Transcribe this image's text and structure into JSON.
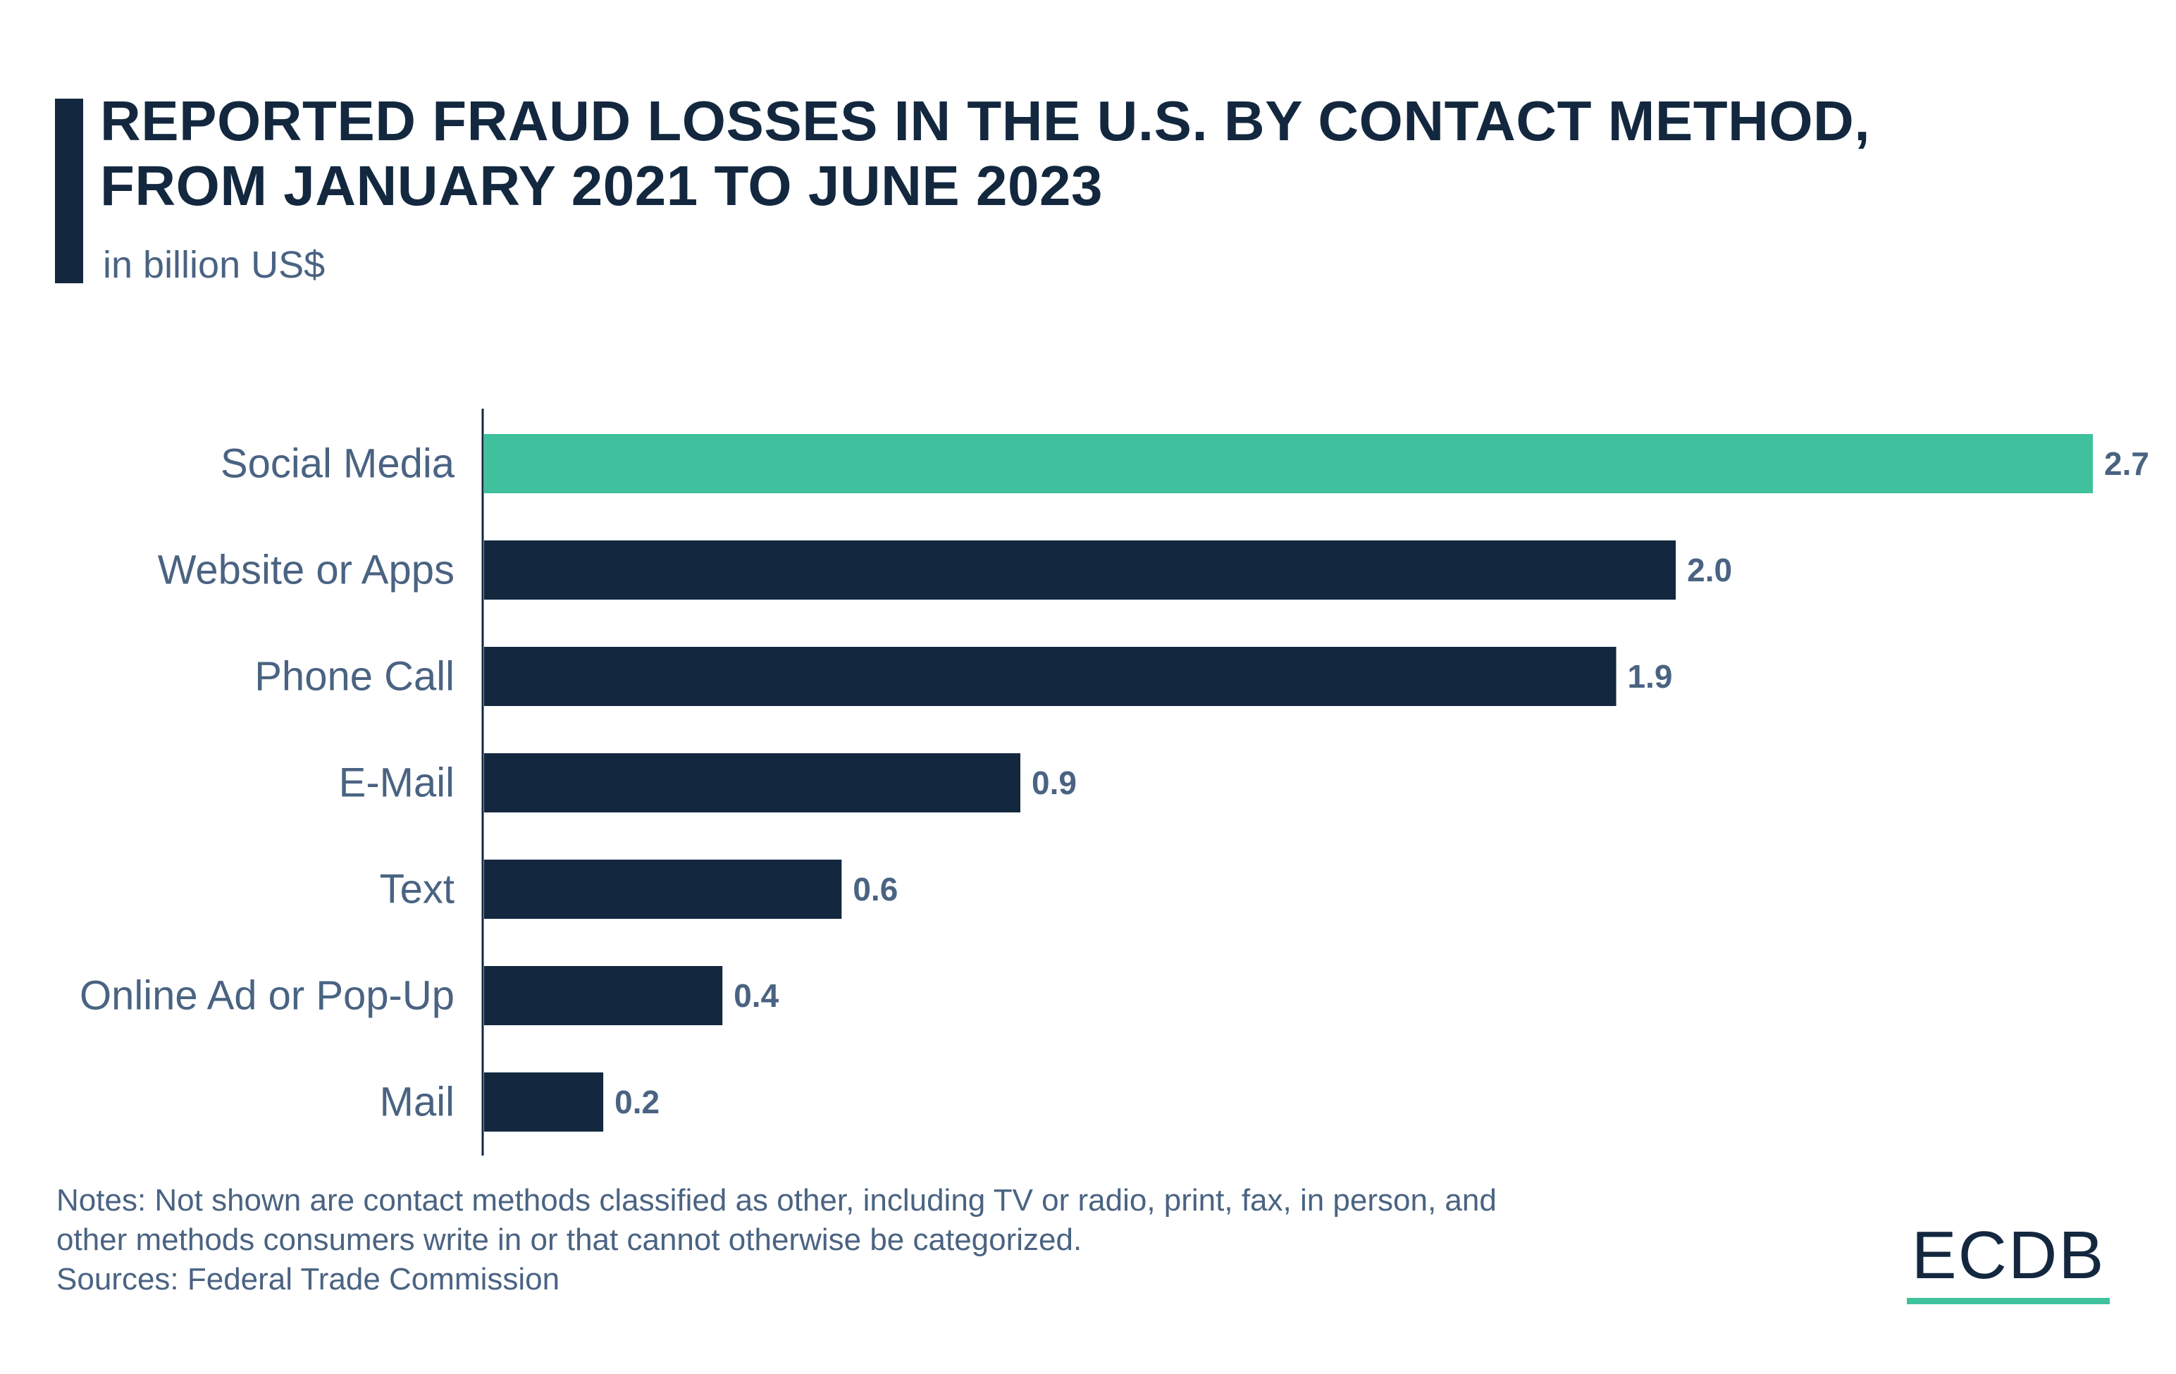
{
  "title_lines": [
    "REPORTED FRAUD LOSSES IN THE U.S. BY CONTACT METHOD,",
    "FROM JANUARY 2021 TO JUNE 2023"
  ],
  "subtitle": "in billion US$",
  "notes": [
    "Notes: Not shown are contact methods classified as other, including TV or radio, print, fax, in person, and",
    "other methods consumers write in or that cannot otherwise be categorized.",
    "Sources: Federal Trade Commission"
  ],
  "logo": "ECDB",
  "colors": {
    "highlight": "#3ec19c",
    "bar": "#13283f",
    "label": "#4a6382",
    "title": "#13283f"
  },
  "chart_data": {
    "type": "bar",
    "orientation": "horizontal",
    "title": "REPORTED FRAUD LOSSES IN THE U.S. BY CONTACT METHOD, FROM JANUARY 2021 TO JUNE 2023",
    "subtitle": "in billion US$",
    "categories": [
      "Social Media",
      "Website or Apps",
      "Phone Call",
      "E-Mail",
      "Text",
      "Online Ad or Pop-Up",
      "Mail"
    ],
    "values": [
      2.7,
      2.0,
      1.9,
      0.9,
      0.6,
      0.4,
      0.2
    ],
    "value_labels": [
      "2.7",
      "2.0",
      "1.9",
      "0.9",
      "0.6",
      "0.4",
      "0.2"
    ],
    "highlighted_category": "Social Media",
    "xlim": [
      0,
      2.7
    ],
    "grid": false,
    "legend": "none"
  }
}
